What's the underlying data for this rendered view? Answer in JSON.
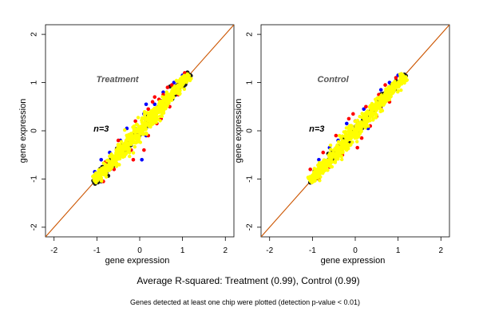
{
  "chart_data": [
    {
      "type": "scatter",
      "panel_label": "Treatment",
      "n_label": "n=3",
      "xlabel": "gene expression",
      "ylabel": "gene expression",
      "xlim": [
        -2.2,
        2.2
      ],
      "ylim": [
        -2.2,
        2.2
      ],
      "xticks": [
        -2,
        -1,
        0,
        1,
        2
      ],
      "yticks": [
        -2,
        -1,
        0,
        1,
        2
      ],
      "xtick_labels": [
        "-2",
        "-1",
        "0",
        "1",
        "2"
      ],
      "ytick_labels": [
        "-2",
        "-1",
        "0",
        "1",
        "2"
      ],
      "reference_line": {
        "slope": 1,
        "intercept": 0,
        "color": "#cc5500"
      },
      "series": [
        {
          "color": "#0000ff",
          "points": [
            [
              -1.05,
              -0.85
            ],
            [
              -0.9,
              -0.6
            ],
            [
              -0.7,
              -0.45
            ],
            [
              -0.3,
              0.05
            ],
            [
              0.1,
              0.35
            ],
            [
              0.15,
              -0.1
            ],
            [
              0.35,
              0.55
            ],
            [
              0.55,
              0.8
            ],
            [
              0.8,
              1.0
            ],
            [
              1.0,
              1.15
            ],
            [
              0.05,
              -0.6
            ],
            [
              -0.45,
              -0.2
            ],
            [
              0.15,
              0.55
            ]
          ]
        },
        {
          "color": "#ff0000",
          "points": [
            [
              -0.85,
              -1.05
            ],
            [
              -0.8,
              -0.65
            ],
            [
              -0.6,
              -0.8
            ],
            [
              -0.5,
              -0.2
            ],
            [
              -0.35,
              -0.5
            ],
            [
              -0.2,
              -0.4
            ],
            [
              -0.1,
              0.2
            ],
            [
              0.2,
              0.45
            ],
            [
              0.2,
              -0.1
            ],
            [
              0.3,
              0.6
            ],
            [
              0.4,
              0.15
            ],
            [
              0.5,
              0.25
            ],
            [
              0.55,
              0.75
            ],
            [
              0.7,
              0.5
            ],
            [
              0.75,
              0.95
            ],
            [
              0.9,
              0.75
            ],
            [
              1.05,
              1.2
            ],
            [
              0.35,
              0.7
            ],
            [
              0.1,
              -0.4
            ],
            [
              -0.15,
              -0.6
            ],
            [
              0.65,
              0.9
            ],
            [
              0.45,
              0.65
            ]
          ]
        }
      ]
    },
    {
      "type": "scatter",
      "panel_label": "Control",
      "n_label": "n=3",
      "xlabel": "gene expression",
      "ylabel": "gene expression",
      "xlim": [
        -2.2,
        2.2
      ],
      "ylim": [
        -2.2,
        2.2
      ],
      "xticks": [
        -2,
        -1,
        0,
        1,
        2
      ],
      "yticks": [
        -2,
        -1,
        0,
        1,
        2
      ],
      "xtick_labels": [
        "-2",
        "-1",
        "0",
        "1",
        "2"
      ],
      "ytick_labels": [
        "-2",
        "-1",
        "0",
        "1",
        "2"
      ],
      "reference_line": {
        "slope": 1,
        "intercept": 0,
        "color": "#cc5500"
      },
      "series": [
        {
          "color": "#0000ff",
          "points": [
            [
              -1.0,
              -0.95
            ],
            [
              -0.85,
              -0.6
            ],
            [
              -0.6,
              -0.35
            ],
            [
              -0.4,
              -0.2
            ],
            [
              -0.2,
              0.15
            ],
            [
              0.2,
              0.45
            ],
            [
              0.3,
              0.05
            ],
            [
              0.6,
              0.85
            ],
            [
              0.8,
              1.0
            ],
            [
              1.0,
              1.15
            ],
            [
              -0.1,
              0.1
            ]
          ]
        },
        {
          "color": "#ff0000",
          "points": [
            [
              -1.05,
              -0.8
            ],
            [
              -0.85,
              -1.0
            ],
            [
              -0.75,
              -0.45
            ],
            [
              -0.6,
              -0.75
            ],
            [
              -0.45,
              -0.1
            ],
            [
              -0.3,
              -0.5
            ],
            [
              -0.15,
              0.25
            ],
            [
              0.0,
              0.2
            ],
            [
              0.05,
              -0.35
            ],
            [
              0.25,
              0.5
            ],
            [
              0.35,
              0.1
            ],
            [
              0.5,
              0.3
            ],
            [
              0.55,
              0.75
            ],
            [
              0.7,
              0.95
            ],
            [
              0.8,
              0.6
            ],
            [
              0.95,
              1.1
            ],
            [
              0.6,
              0.45
            ],
            [
              -0.05,
              0.35
            ],
            [
              0.15,
              -0.15
            ]
          ]
        }
      ]
    }
  ],
  "caption": {
    "summary": "Average R-squared: Treatment (0.99), Control (0.99)",
    "note": "Genes detected at least one chip were plotted (detection p-value < 0.01)"
  },
  "colors": {
    "core": "#ffff00",
    "outline": "#1a1a1a",
    "ref_line": "#cc5500"
  }
}
